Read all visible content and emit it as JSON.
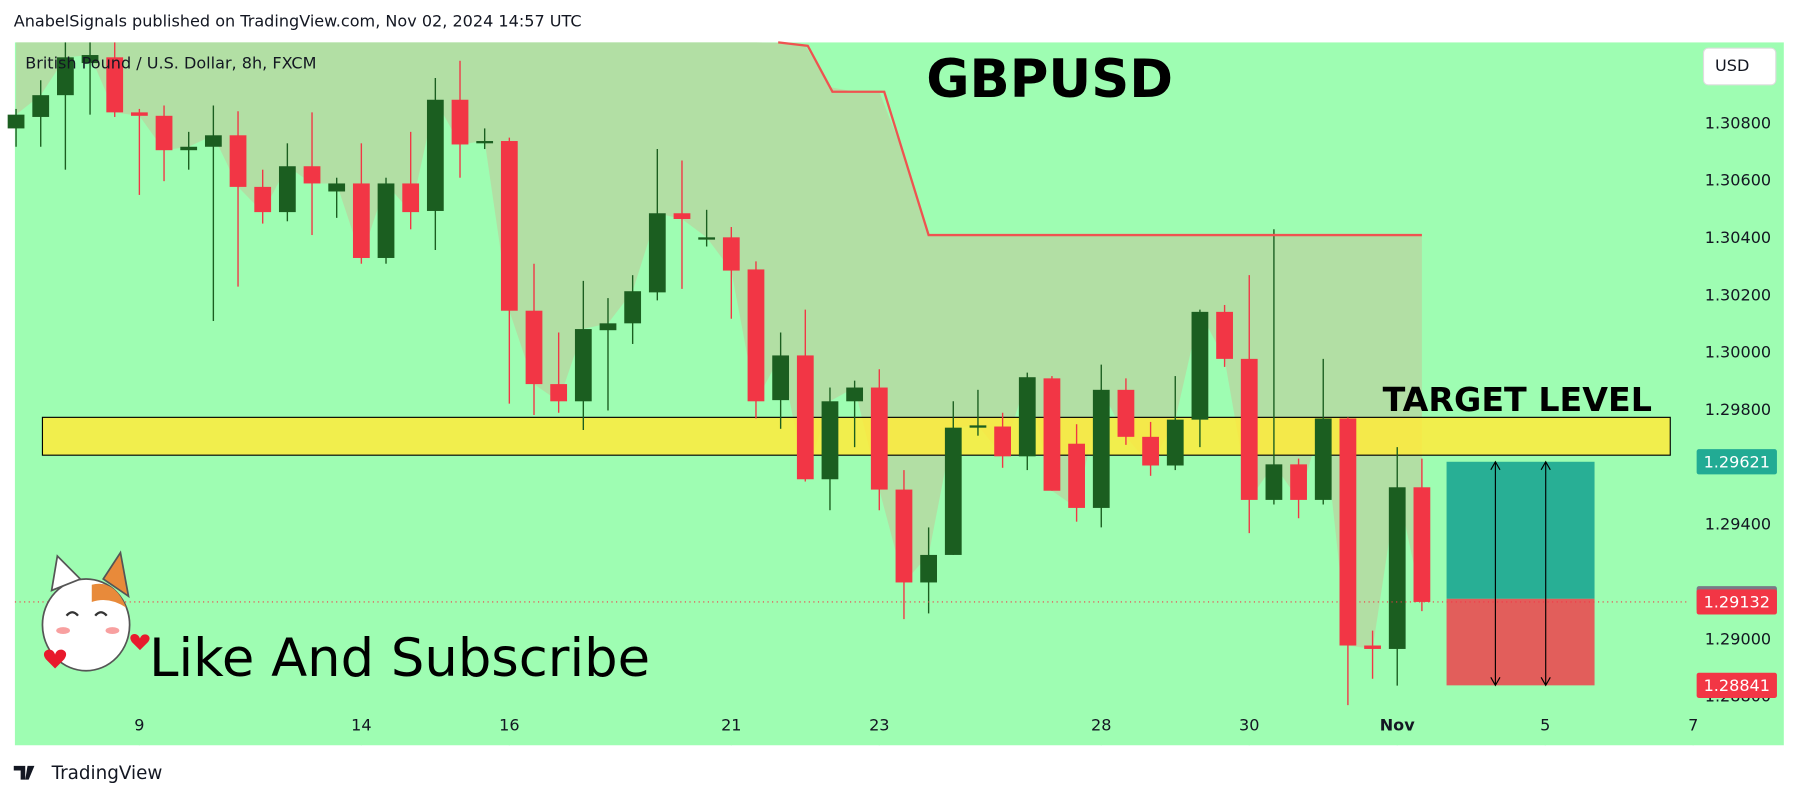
{
  "header": "AnabelSignals published on TradingView.com, Nov 02, 2024 14:57 UTC",
  "footer": "TradingView",
  "chart_data": {
    "type": "candlestick",
    "title": "GBPUSD",
    "symbol": "British Pound / U.S. Dollar, 8h, FXCM",
    "currency": "USD",
    "annotation": "Like And Subscribe",
    "candles": {
      "open": [
        1.30784,
        1.30824,
        1.309,
        1.31012,
        1.31032,
        1.3084,
        1.30828,
        1.30708,
        1.3072,
        1.3076,
        1.3058,
        1.30492,
        1.30652,
        1.30564,
        1.30592,
        1.30332,
        1.30592,
        1.30496,
        1.30884,
        1.30732,
        1.3074,
        1.30148,
        1.29892,
        1.29832,
        1.3008,
        1.30104,
        1.30212,
        1.30488,
        1.30396,
        1.30404,
        1.30292,
        1.29836,
        1.29992,
        1.2956,
        1.29832,
        1.2988,
        1.29524,
        1.292,
        1.29296,
        1.2974,
        1.29744,
        1.2964,
        1.29912,
        1.29684,
        1.2946,
        1.29872,
        1.29708,
        1.29608,
        1.29768,
        1.30144,
        1.2998,
        1.29488,
        1.29612,
        1.29488,
        1.29772,
        1.2898,
        1.28968,
        1.29532
      ],
      "high": [
        1.30852,
        1.30952,
        1.31084,
        1.31084,
        1.31084,
        1.30852,
        1.30864,
        1.30772,
        1.30864,
        1.30844,
        1.3064,
        1.30732,
        1.3084,
        1.30612,
        1.30732,
        1.30612,
        1.30772,
        1.3096,
        1.3102,
        1.30784,
        1.30752,
        1.30312,
        1.30072,
        1.30252,
        1.30192,
        1.30272,
        1.30712,
        1.30672,
        1.305,
        1.3044,
        1.3032,
        1.30072,
        1.30152,
        1.2988,
        1.29904,
        1.29944,
        1.29592,
        1.29392,
        1.29832,
        1.29872,
        1.29792,
        1.29932,
        1.2992,
        1.29752,
        1.2996,
        1.29912,
        1.2976,
        1.2992,
        1.30152,
        1.30168,
        1.30272,
        1.30432,
        1.29632,
        1.2998,
        1.29776,
        1.29032,
        1.29672,
        1.29632
      ],
      "low": [
        1.3072,
        1.3072,
        1.3064,
        1.30832,
        1.30824,
        1.30552,
        1.306,
        1.3064,
        1.30112,
        1.30232,
        1.30452,
        1.3046,
        1.30412,
        1.30472,
        1.30312,
        1.30312,
        1.30432,
        1.3036,
        1.30612,
        1.30712,
        1.29824,
        1.29784,
        1.29792,
        1.29732,
        1.298,
        1.30032,
        1.30184,
        1.30224,
        1.30372,
        1.3012,
        1.29772,
        1.29736,
        1.29552,
        1.29452,
        1.29672,
        1.29452,
        1.29072,
        1.29092,
        1.29296,
        1.29712,
        1.296,
        1.29592,
        1.2952,
        1.29412,
        1.29392,
        1.2968,
        1.29572,
        1.29592,
        1.29672,
        1.29952,
        1.29372,
        1.29472,
        1.29424,
        1.29472,
        1.28772,
        1.28864,
        1.2884,
        1.291
      ],
      "close": [
        1.30832,
        1.309,
        1.31032,
        1.3104,
        1.3084,
        1.30828,
        1.30708,
        1.3072,
        1.3076,
        1.3058,
        1.30492,
        1.30652,
        1.30592,
        1.30592,
        1.30332,
        1.30592,
        1.30492,
        1.30884,
        1.30728,
        1.3074,
        1.30148,
        1.29892,
        1.29832,
        1.30084,
        1.30104,
        1.30216,
        1.30488,
        1.30468,
        1.30404,
        1.30288,
        1.29832,
        1.29992,
        1.2956,
        1.29832,
        1.2988,
        1.29524,
        1.292,
        1.29296,
        1.2974,
        1.29748,
        1.2964,
        1.29916,
        1.2952,
        1.2946,
        1.29872,
        1.29708,
        1.29608,
        1.29768,
        1.30144,
        1.2998,
        1.29488,
        1.29612,
        1.29488,
        1.29772,
        1.2898,
        1.28968,
        1.29532,
        1.29132
      ],
      "up_color": "#1b5e20",
      "down_color": "#f23645"
    },
    "overlay_line": {
      "x": [
        30.9,
        32.1,
        33.1,
        35.2,
        37,
        57
      ],
      "values": [
        1.31084,
        1.31072,
        1.30912,
        1.30912,
        1.30412,
        1.30412
      ],
      "color": "#ef5350"
    },
    "zone": {
      "label": "TARGET LEVEL",
      "range": [
        1.29644,
        1.29776
      ],
      "color": "#ffeb3b"
    },
    "position": {
      "x": [
        58,
        64
      ],
      "target": 1.29621,
      "entry": 1.29143,
      "stop": 1.28841,
      "target_color": "#22ab94",
      "entry_color": "#787b86",
      "stop_color": "#f23645"
    },
    "xlim": [
      0,
      68
    ],
    "xticks": [
      {
        "value": 5,
        "label": "9"
      },
      {
        "value": 14,
        "label": "14"
      },
      {
        "value": 20,
        "label": "16"
      },
      {
        "value": 29,
        "label": "21"
      },
      {
        "value": 35,
        "label": "23"
      },
      {
        "value": 44,
        "label": "28"
      },
      {
        "value": 50,
        "label": "30"
      },
      {
        "value": 56,
        "label": "Nov"
      },
      {
        "value": 62,
        "label": "5"
      },
      {
        "value": 68,
        "label": "7"
      }
    ],
    "ylim": [
      1.28632,
      1.31084
    ],
    "yticks": [
      {
        "value": 1.308,
        "label": "1.30800"
      },
      {
        "value": 1.306,
        "label": "1.30600"
      },
      {
        "value": 1.304,
        "label": "1.30400"
      },
      {
        "value": 1.302,
        "label": "1.30200"
      },
      {
        "value": 1.3,
        "label": "1.30000"
      },
      {
        "value": 1.298,
        "label": "1.29800"
      },
      {
        "value": 1.294,
        "label": "1.29400"
      },
      {
        "value": 1.29,
        "label": "1.29000"
      },
      {
        "value": 1.288,
        "label": "1.28800"
      }
    ],
    "background": "#9efdb2"
  }
}
